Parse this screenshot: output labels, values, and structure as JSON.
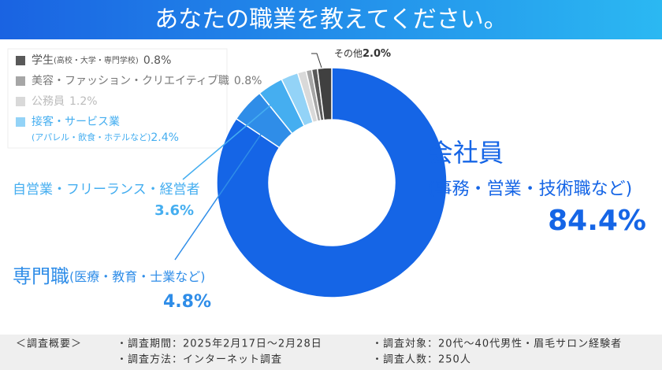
{
  "chart_data": {
    "type": "donut",
    "title": "あなたの職業を教えてください。",
    "categories": [
      "会社員",
      "専門職",
      "自営業・フリーランス・経営者",
      "接客・サービス業",
      "公務員",
      "美容・ファッション・クリエイティブ職",
      "学生",
      "その他"
    ],
    "notes": [
      "(事務・営業・技術職など)",
      "(医療・教育・士業など)",
      null,
      "(アパレル・飲食・ホテルなど)",
      null,
      null,
      "(高校・大学・専門学校)",
      null
    ],
    "values": [
      84.4,
      4.8,
      3.6,
      2.4,
      1.2,
      0.8,
      0.8,
      2.0
    ],
    "value_labels": [
      "84.4%",
      "4.8%",
      "3.6%",
      "2.4%",
      "1.2%",
      "0.8%",
      "0.8%",
      "2.0%"
    ],
    "colors": [
      "#1565e6",
      "#2f8de8",
      "#45aef0",
      "#93d3f7",
      "#d9d9d9",
      "#a6a6a6",
      "#595959",
      "#404040"
    ]
  },
  "survey_summary": {
    "heading": "＜調査概要＞",
    "items": [
      "・調査期間：2025年2月17日～2月28日",
      "・調査対象：20代～40代男性・眉毛サロン経験者",
      "・調査方法：インターネット調査",
      "・調査人数：250人"
    ]
  }
}
